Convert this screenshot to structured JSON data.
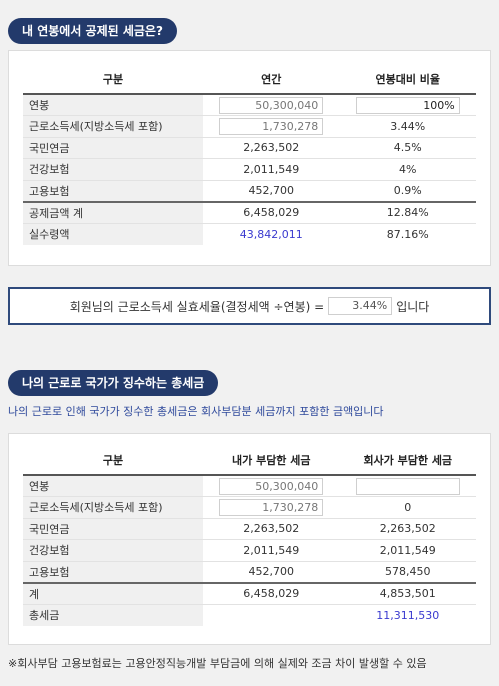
{
  "section1": {
    "title": "내 연봉에서 공제된 세금은?",
    "headers": [
      "구분",
      "연간",
      "연봉대비 비율"
    ],
    "rows": [
      {
        "label": "연봉",
        "annual": "50,300,040",
        "ratio": "100%"
      },
      {
        "label": "근로소득세(지방소득세 포함)",
        "annual": "1,730,278",
        "ratio": "3.44%"
      },
      {
        "label": "국민연금",
        "annual": "2,263,502",
        "ratio": "4.5%"
      },
      {
        "label": "건강보험",
        "annual": "2,011,549",
        "ratio": "4%"
      },
      {
        "label": "고용보험",
        "annual": "452,700",
        "ratio": "0.9%"
      },
      {
        "label": "공제금액 계",
        "annual": "6,458,029",
        "ratio": "12.84%"
      },
      {
        "label": "실수령액",
        "annual": "43,842,011",
        "ratio": "87.16%"
      }
    ]
  },
  "rate": {
    "prefix": "회원님의 근로소득세 실효세율(결정세액 ÷연봉) =",
    "value": "3.44%",
    "suffix": "입니다"
  },
  "section2": {
    "title": "나의 근로로 국가가 징수하는 총세금",
    "description": "나의 근로로 인해 국가가 징수한 총세금은 회사부담분 세금까지 포함한 금액입니다",
    "headers": [
      "구분",
      "내가 부담한 세금",
      "회사가 부담한 세금"
    ],
    "rows": [
      {
        "label": "연봉",
        "mine": "50,300,040",
        "company": ""
      },
      {
        "label": "근로소득세(지방소득세 포함)",
        "mine": "1,730,278",
        "company": "0"
      },
      {
        "label": "국민연금",
        "mine": "2,263,502",
        "company": "2,263,502"
      },
      {
        "label": "건강보험",
        "mine": "2,011,549",
        "company": "2,011,549"
      },
      {
        "label": "고용보험",
        "mine": "452,700",
        "company": "578,450"
      },
      {
        "label": "계",
        "mine": "6,458,029",
        "company": "4,853,501"
      },
      {
        "label": "총세금",
        "mine": "",
        "company": "11,311,530"
      }
    ]
  },
  "footnote": "※회사부담 고용보험료는 고용안정직능개발 부담금에 의해 실제와 조금 차이 발생할 수 있음"
}
